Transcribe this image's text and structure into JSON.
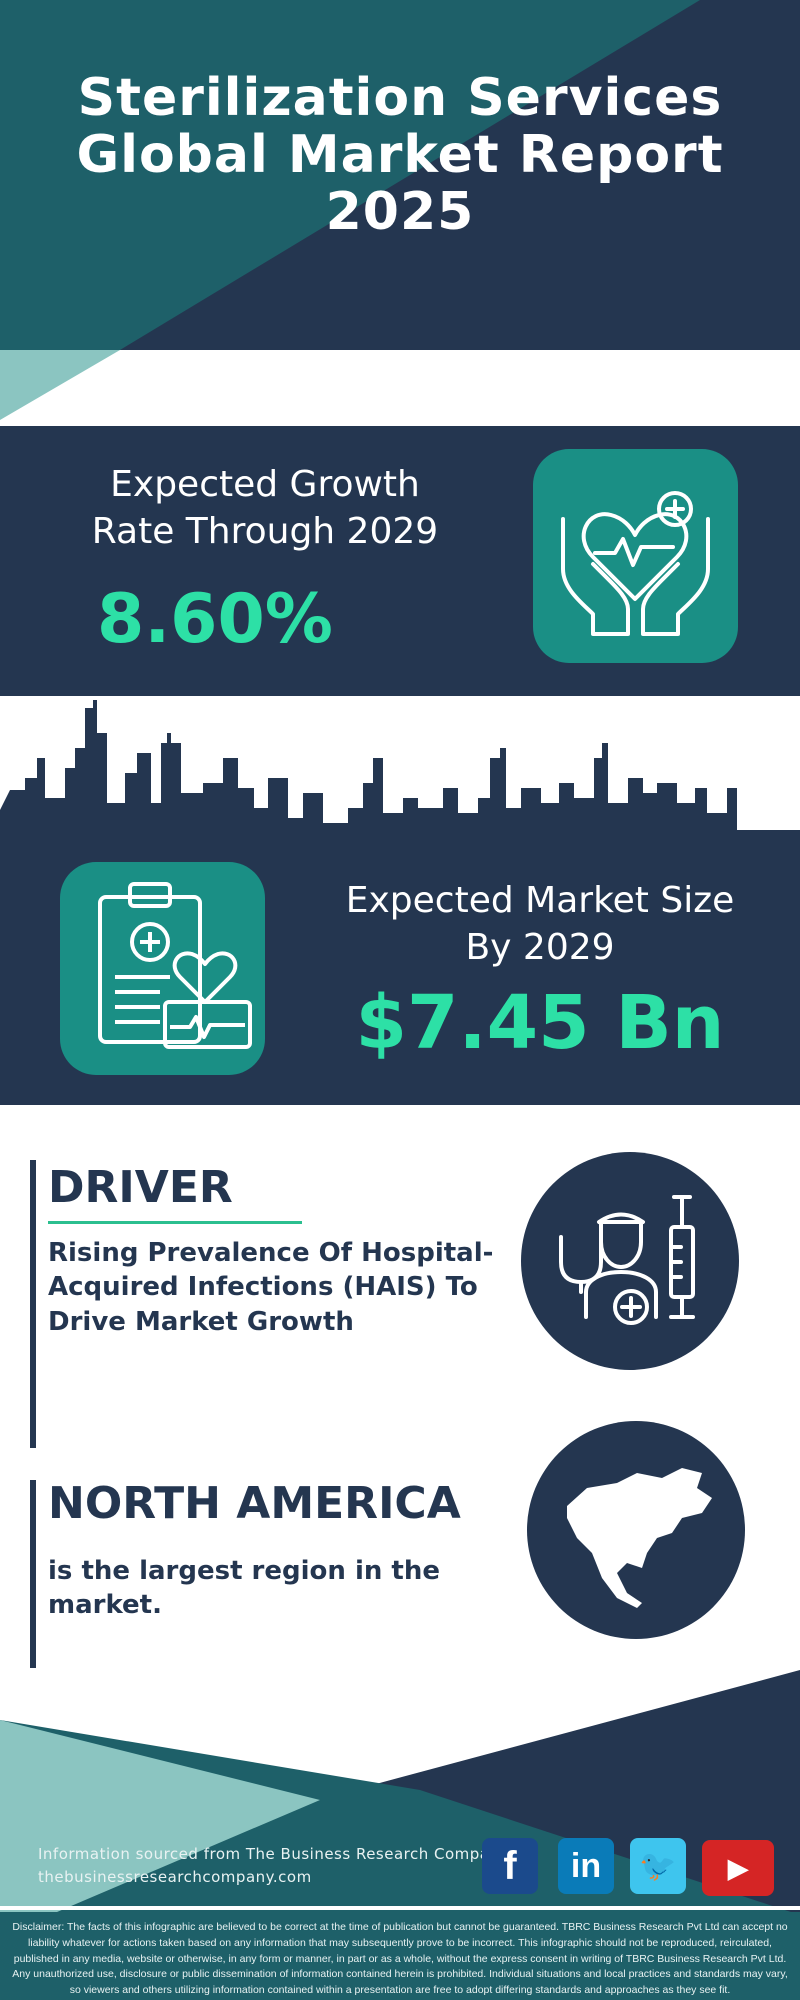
{
  "header": {
    "title_lines": [
      "Sterilization Services",
      "Global Market Report",
      "2025"
    ]
  },
  "growth": {
    "label_lines": [
      "Expected Growth",
      "Rate Through 2029"
    ],
    "value": "8.60%",
    "icon": "hands-heart-icon"
  },
  "market": {
    "label_lines": [
      "Expected Market Size",
      "By 2029"
    ],
    "value": "$7.45 Bn",
    "icon": "clipboard-heart-icon"
  },
  "driver": {
    "heading": "DRIVER",
    "text_lines": [
      "Rising Prevalence Of Hospital-",
      "Acquired Infections (HAIS) To",
      "Drive Market Growth"
    ],
    "icon": "doctor-syringe-icon"
  },
  "region": {
    "heading": "NORTH AMERICA",
    "text_lines": [
      "is the largest region in the",
      "market."
    ],
    "icon": "north-america-map-icon"
  },
  "footer": {
    "source": "Information sourced from The Business Research Company",
    "website": "thebusinessresearchcompany.com",
    "social": [
      "facebook",
      "linkedin",
      "twitter",
      "youtube"
    ],
    "disclaimer": "Disclaimer: The facts of this infographic are believed to be correct at the time of publication but cannot be guaranteed. TBRC Business Research Pvt Ltd can accept no liability whatever for actions taken based on any information that may subsequently prove to be incorrect. This infographic should not be reproduced, reirculated, published in any media, website or otherwise, in any form or manner, in part or as a whole, without the express consent in writing of TBRC Business Research Pvt Ltd. Any unauthorized use, disclosure or public dissemination of information contained herein is prohibited. Individual situations and local practices and standards may vary, so viewers and others utilizing information contained within a presentation are free to adopt differing standards and approaches as they see fit."
  },
  "colors": {
    "navy": "#243650",
    "teal": "#1e6069",
    "accent_green": "#2de0a6",
    "icon_teal": "#1a8f85",
    "light_teal": "#8bc5c1"
  }
}
